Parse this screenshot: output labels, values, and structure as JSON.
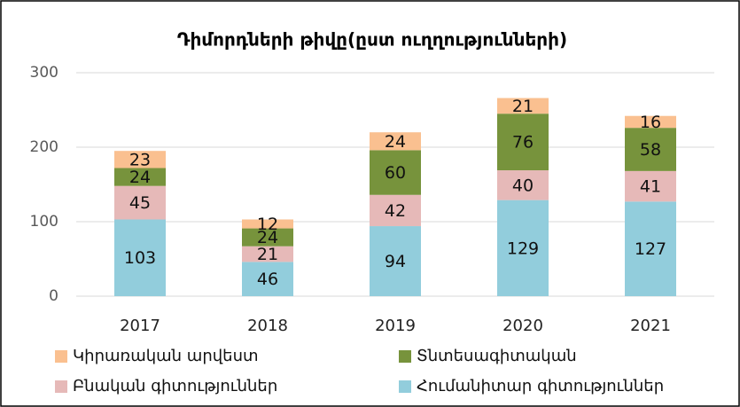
{
  "chart_data": {
    "type": "stacked_bar",
    "title": "Դիմորդների թիվը(ըստ ուղղությունների)",
    "categories": [
      "2017",
      "2018",
      "2019",
      "2020",
      "2021"
    ],
    "series": [
      {
        "name": "Հումանիտար գիտություններ",
        "color": "#92cddc",
        "values": [
          103,
          46,
          94,
          129,
          127
        ]
      },
      {
        "name": "Բնական գիտություններ",
        "color": "#e6b9b8",
        "values": [
          45,
          21,
          42,
          40,
          41
        ]
      },
      {
        "name": "Տնտեսագիտական",
        "color": "#77933c",
        "values": [
          24,
          24,
          60,
          76,
          58
        ]
      },
      {
        "name": "Կիրառական արվեստ",
        "color": "#fac090",
        "values": [
          23,
          12,
          24,
          21,
          16
        ]
      }
    ],
    "ylim": [
      0,
      300
    ],
    "yticks": [
      0,
      100,
      200,
      300
    ],
    "grid": true
  }
}
